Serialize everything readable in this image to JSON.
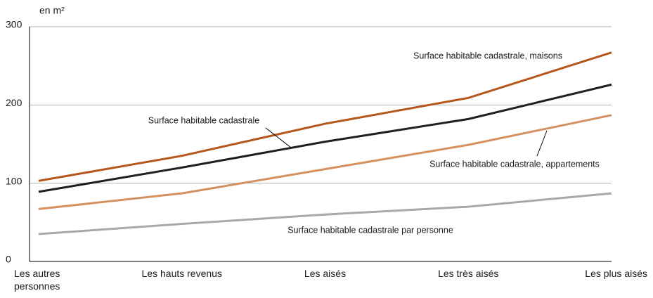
{
  "chart_data": {
    "type": "line",
    "unit_label": "en m²",
    "categories": [
      "Les autres personnes",
      "Les hauts revenus",
      "Les aisés",
      "Les très aisés",
      "Les plus aisés"
    ],
    "series": [
      {
        "name": "Surface habitable cadastrale, maisons",
        "color": "#b5561c",
        "values": [
          103,
          135,
          176,
          209,
          267
        ]
      },
      {
        "name": "Surface habitable cadastrale",
        "color": "#1f1f1f",
        "values": [
          89,
          120,
          153,
          182,
          226
        ]
      },
      {
        "name": "Surface habitable cadastrale, appartements",
        "color": "#d4915f",
        "values": [
          67,
          87,
          118,
          149,
          187
        ]
      },
      {
        "name": "Surface habitable cadastrale par personne",
        "color": "#a8a8a8",
        "values": [
          35,
          48,
          60,
          70,
          87
        ]
      }
    ],
    "ylim": [
      0,
      300
    ],
    "yticks": [
      0,
      100,
      200,
      300
    ],
    "grid": true
  }
}
